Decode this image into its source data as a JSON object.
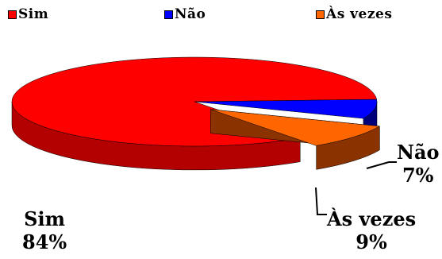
{
  "chart_data": {
    "type": "pie",
    "style": "3d",
    "legend_position": "top",
    "title": "",
    "categories": [
      "Sim",
      "Não",
      "Às vezes"
    ],
    "values": [
      84,
      7,
      9
    ],
    "labels": [
      {
        "name": "Sim",
        "value_label": "84%"
      },
      {
        "name": "Não",
        "value_label": "7%"
      },
      {
        "name": "Às vezes",
        "value_label": "9%"
      }
    ],
    "colors": [
      "#ff0000",
      "#0000ff",
      "#ff6600"
    ],
    "side_colors": [
      "#b30000",
      "#00007a",
      "#8a3300"
    ],
    "exploded": [
      false,
      false,
      true
    ]
  }
}
